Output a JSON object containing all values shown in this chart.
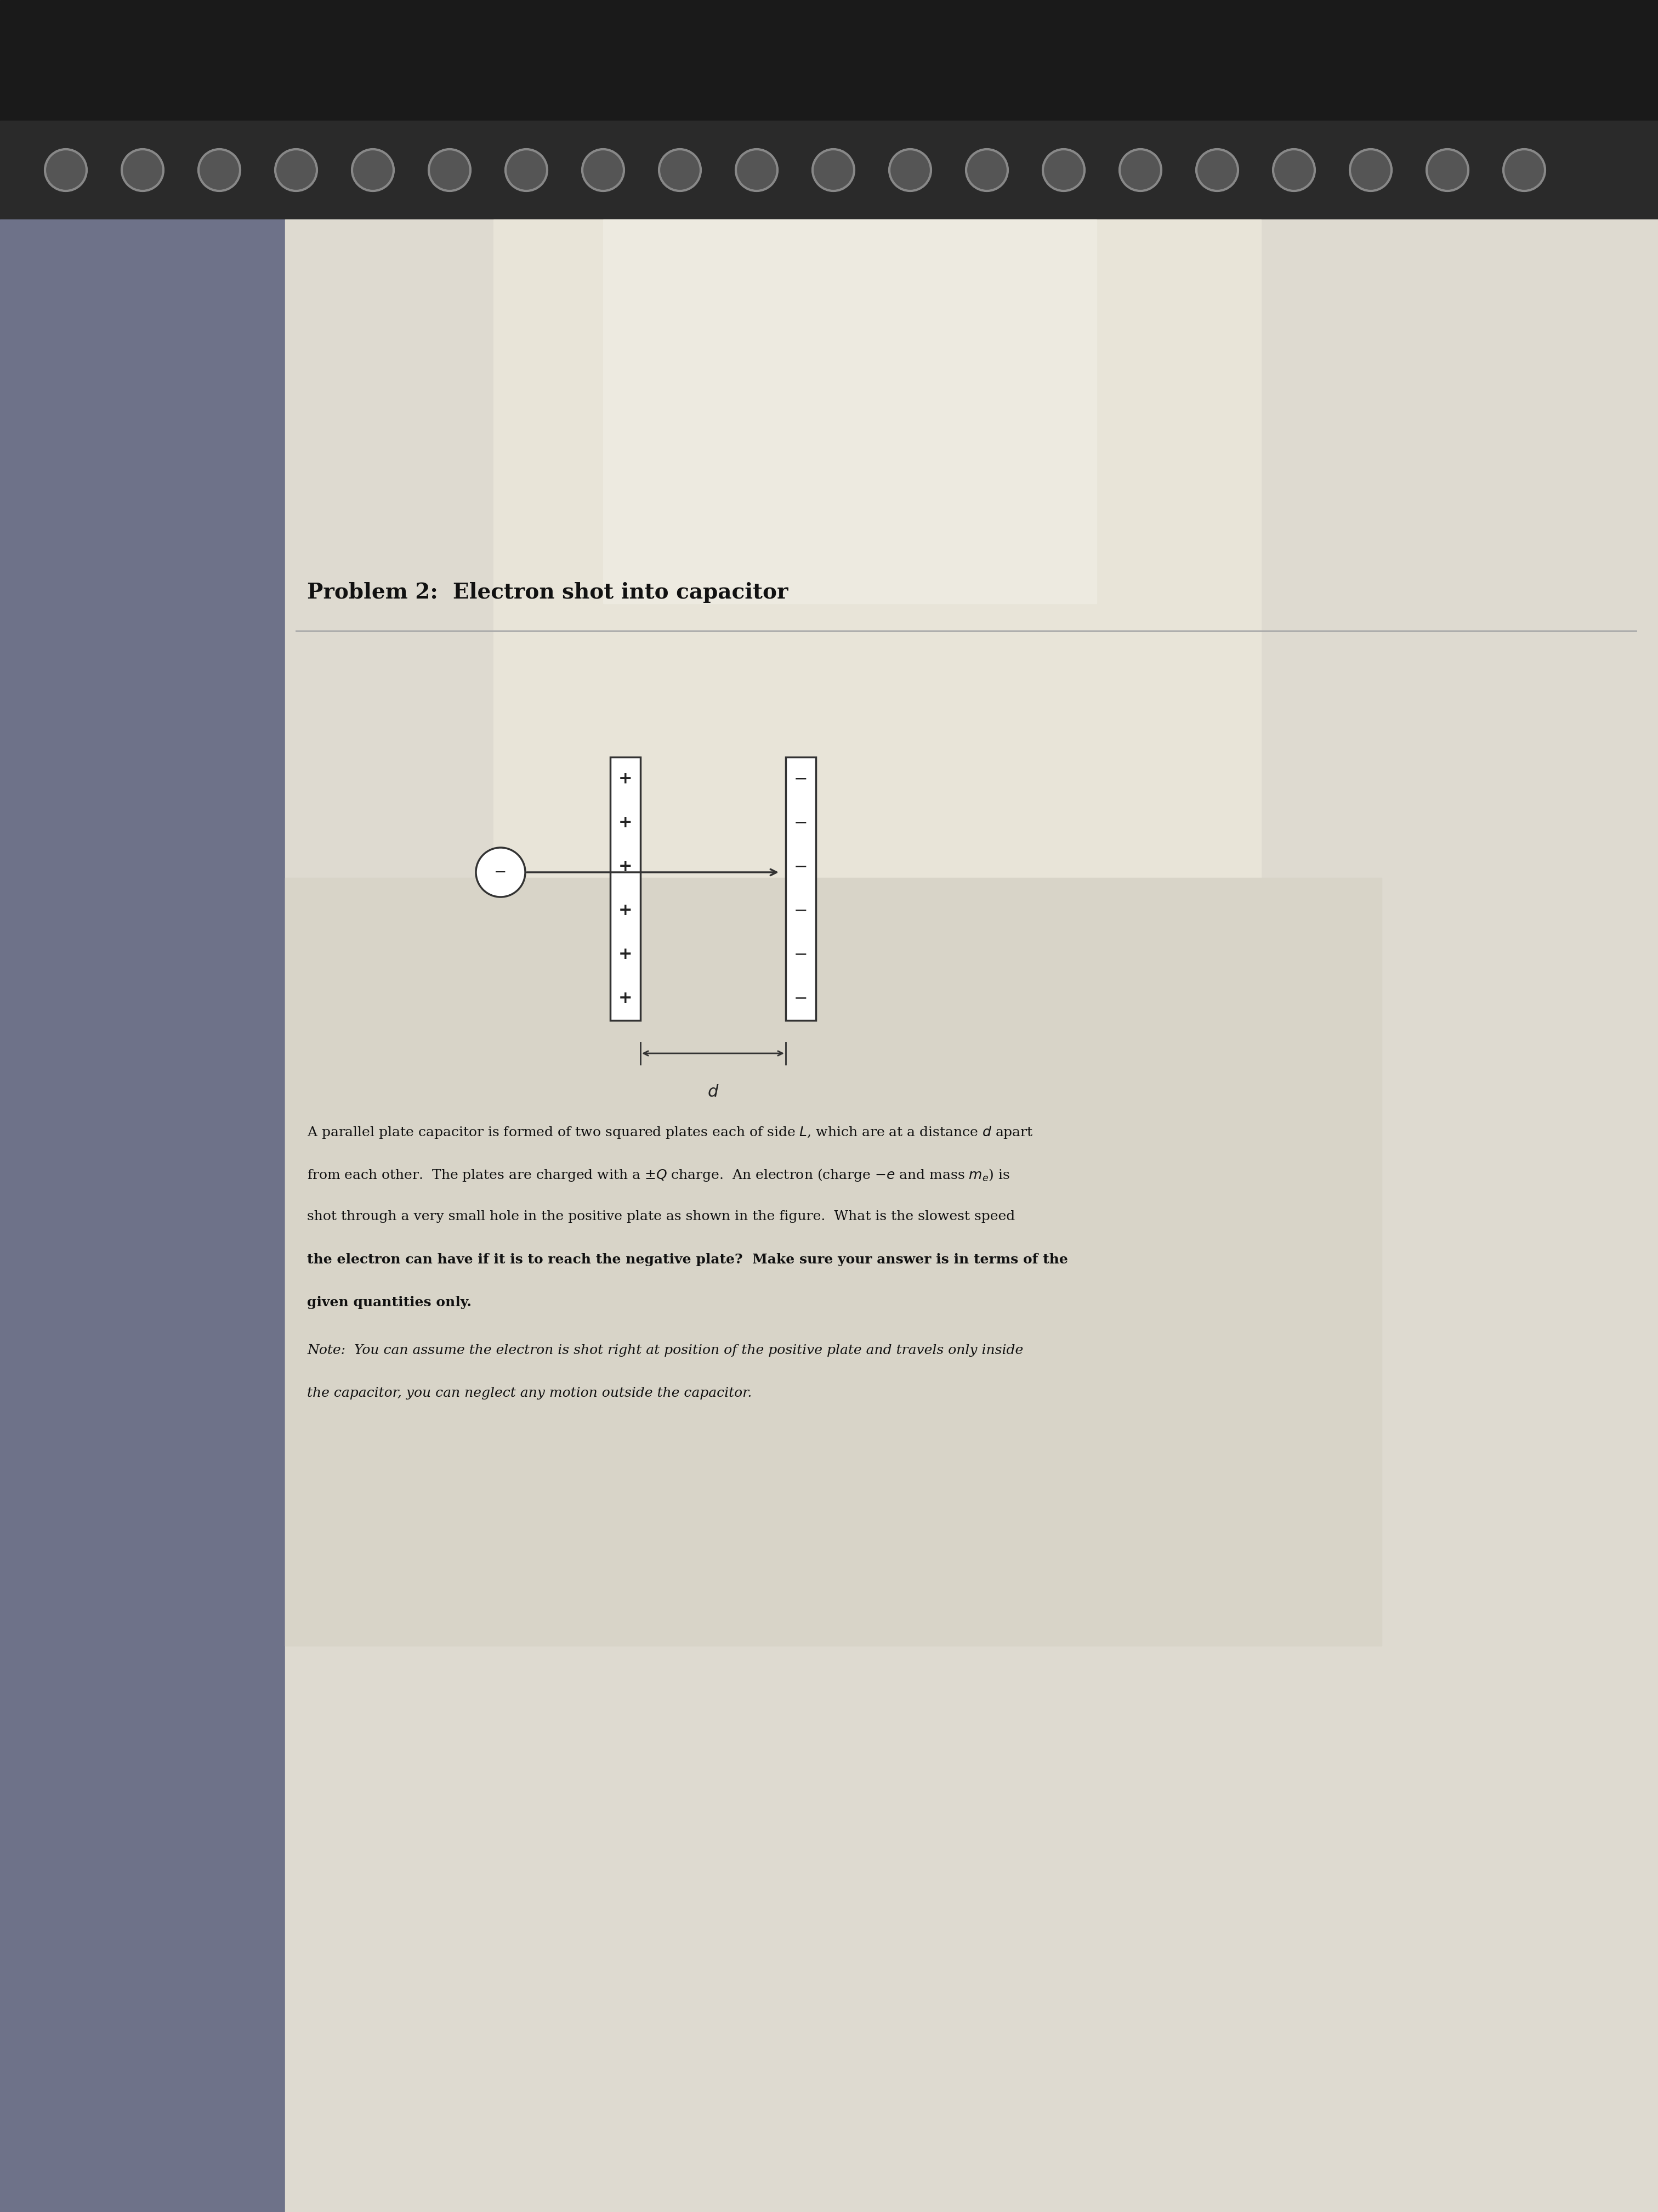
{
  "title": "Problem 2:  Electron shot into capacitor",
  "title_fontsize": 28,
  "body_fontsize": 18,
  "note_fontsize": 18,
  "bg_left_color": "#6b6f87",
  "bg_right_color": "#ddd9ca",
  "paper_color": "#e2ddd0",
  "paper_bright_color": "#ece8db",
  "body_lines": [
    "A parallel plate capacitor is formed of two squared plates each of side $L$, which are at a distance $d$ apart",
    "from each other.  The plates are charged with a $\\pm Q$ charge.  An electron (charge $-e$ and mass $m_e$) is",
    "shot through a very small hole in the positive plate as shown in the figure.  What is the slowest speed",
    "the electron can have if it is to reach the negative plate?  Make sure your answer is in terms of the",
    "given quantities only."
  ],
  "body_bold_from": 3,
  "note_lines": [
    "Note:  You can assume the electron is shot right at position of the positive plate and travels only inside",
    "the capacitor, you can neglect any motion outside the capacitor."
  ]
}
